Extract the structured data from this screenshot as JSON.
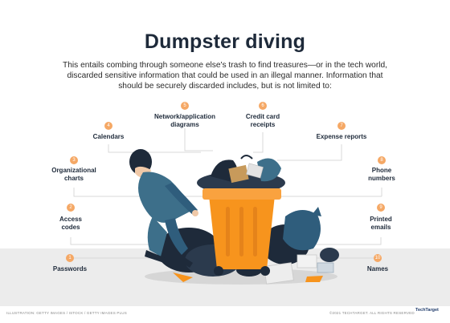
{
  "title": "Dumpster diving",
  "intro": "This entails combing through someone else's trash to find treasures—or in the tech world, discarded sensitive information that could be used in an illegal manner. Information that should be securely discarded includes, but is not limited to:",
  "items": [
    {
      "num": "1",
      "label": "Passwords"
    },
    {
      "num": "2",
      "label": "Access codes"
    },
    {
      "num": "3",
      "label": "Organizational charts"
    },
    {
      "num": "4",
      "label": "Calendars"
    },
    {
      "num": "5",
      "label": "Network/application diagrams"
    },
    {
      "num": "6",
      "label": "Credit card receipts"
    },
    {
      "num": "7",
      "label": "Expense reports"
    },
    {
      "num": "8",
      "label": "Phone numbers"
    },
    {
      "num": "9",
      "label": "Printed emails"
    },
    {
      "num": "10",
      "label": "Names"
    }
  ],
  "footer": {
    "left_credit": "ILLUSTRATION: GETTY IMAGES / ISTOCK / GETTY IMAGES PLUS",
    "right_credit": "©2021 TECHTARGET. ALL RIGHTS RESERVED",
    "logo": "TechTarget"
  },
  "colors": {
    "dot": "#f5a865",
    "bin": "#f7941d",
    "text": "#1e2a3a",
    "person_jacket": "#3d6f8a",
    "trash_bag": "#1e2a3a"
  }
}
